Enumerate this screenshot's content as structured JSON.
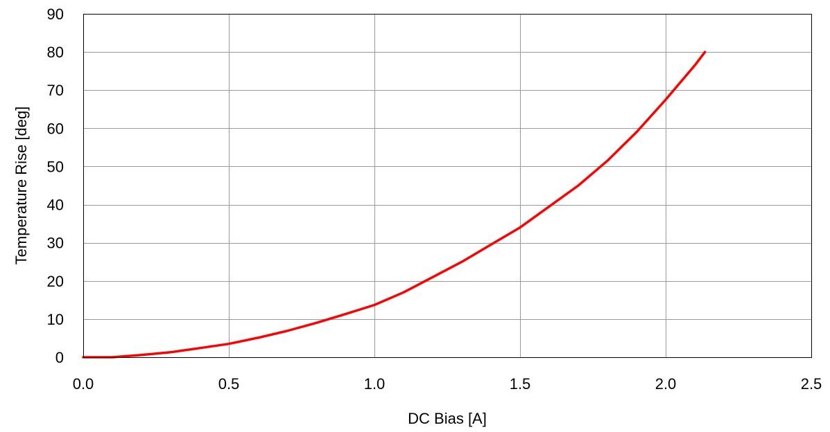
{
  "chart_data": {
    "type": "line",
    "title": "",
    "xlabel": "DC Bias [A]",
    "ylabel": "Temperature Rise [deg]",
    "xlim": [
      0,
      2.5
    ],
    "ylim": [
      0,
      90
    ],
    "x_ticks": [
      "0.0",
      "0.5",
      "1.0",
      "1.5",
      "2.0",
      "2.5"
    ],
    "y_ticks": [
      "0",
      "10",
      "20",
      "30",
      "40",
      "50",
      "60",
      "70",
      "80",
      "90"
    ],
    "grid": true,
    "legend": "none",
    "series": [
      {
        "color": "#ff0000",
        "x": [
          0.0,
          0.1,
          0.2,
          0.3,
          0.4,
          0.5,
          0.6,
          0.7,
          0.8,
          0.9,
          1.0,
          1.1,
          1.2,
          1.3,
          1.4,
          1.5,
          1.6,
          1.7,
          1.8,
          1.9,
          2.0,
          2.1,
          2.135
        ],
        "y": [
          0.0,
          0.0,
          0.6,
          1.3,
          2.4,
          3.5,
          5.1,
          6.9,
          9.0,
          11.3,
          13.7,
          17.0,
          21.0,
          25.0,
          29.5,
          34.0,
          39.5,
          45.0,
          51.5,
          59.0,
          67.5,
          76.5,
          80.0
        ]
      }
    ]
  }
}
